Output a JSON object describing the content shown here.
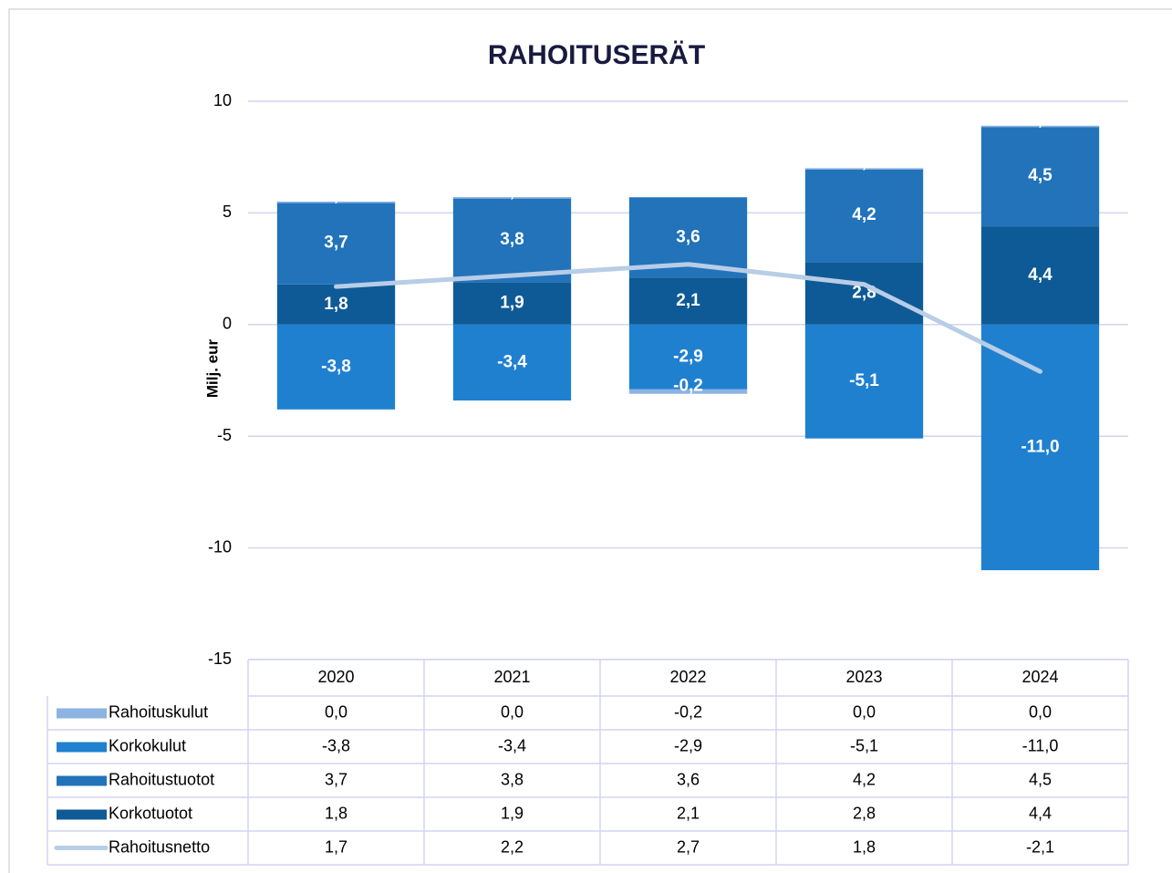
{
  "chart_data": {
    "type": "bar",
    "stacked": true,
    "title": "RAHOITUSERÄT",
    "y_label": "Milj. eur",
    "categories": [
      "2020",
      "2021",
      "2022",
      "2023",
      "2024"
    ],
    "ylim": [
      -15,
      10
    ],
    "yticks": [
      10,
      5,
      0,
      -5,
      -10,
      -15
    ],
    "grid": true,
    "series": [
      {
        "name": "Rahoituskulut",
        "type": "bar",
        "color": "#8db3e2",
        "values": [
          0,
          0,
          -0.2,
          0,
          0
        ],
        "value_labels": [
          "0,0",
          "0,0",
          "-0,2",
          "0,0",
          "0,0"
        ]
      },
      {
        "name": "Korkokulut",
        "type": "bar",
        "color": "#1f80d0",
        "values": [
          -3.8,
          -3.4,
          -2.9,
          -5.1,
          -11.0
        ],
        "value_labels": [
          "-3,8",
          "-3,4",
          "-2,9",
          "-5,1",
          "-11,0"
        ]
      },
      {
        "name": "Rahoitustuotot",
        "type": "bar",
        "color": "#2273ba",
        "values": [
          3.7,
          3.8,
          3.6,
          4.2,
          4.5
        ],
        "value_labels": [
          "3,7",
          "3,8",
          "3,6",
          "4,2",
          "4,5"
        ]
      },
      {
        "name": "Korkotuotot",
        "type": "bar",
        "color": "#0e5a96",
        "values": [
          1.8,
          1.9,
          2.1,
          2.8,
          4.4
        ],
        "value_labels": [
          "1,8",
          "1,9",
          "2,1",
          "2,8",
          "4,4"
        ]
      },
      {
        "name": "Rahoitusnetto",
        "type": "line",
        "color": "#b8cde6",
        "values": [
          1.7,
          2.2,
          2.7,
          1.8,
          -2.1
        ],
        "value_labels": [
          "1,7",
          "2,2",
          "2,7",
          "1,8",
          "-2,1"
        ]
      }
    ]
  }
}
